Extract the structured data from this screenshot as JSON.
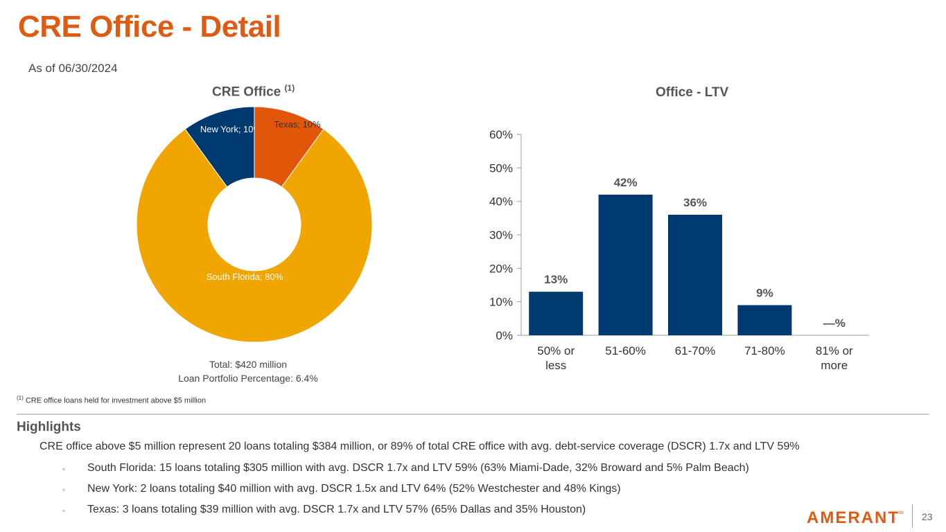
{
  "page": {
    "title": "CRE Office - Detail",
    "as_of": "As of 06/30/2024",
    "page_number": "23",
    "logo_text": "AMERANT",
    "logo_mark": "SM"
  },
  "colors": {
    "accent": "#e05a12",
    "navy": "#003a70",
    "gold": "#f0a500",
    "orange": "#e2560a"
  },
  "pie": {
    "title": "CRE Office",
    "title_sup": "(1)",
    "total_line": "Total: $420 million",
    "portfolio_line": "Loan Portfolio Percentage: 6.4%"
  },
  "bar": {
    "title": "Office - LTV"
  },
  "footnote": {
    "marker": "(1)",
    "text": " CRE office loans held for investment above $5 million"
  },
  "highlights": {
    "title": "Highlights",
    "main": "CRE office above $5 million represent 20  loans totaling $384 million, or 89% of total CRE office with avg. debt-service coverage (DSCR) 1.7x and LTV 59%",
    "bullet_symbol": "◦",
    "bullets": [
      "South Florida: 15 loans totaling $305 million  with avg. DSCR 1.7x and LTV 59% (63% Miami-Dade, 32% Broward and 5% Palm Beach)",
      "New York: 2 loans totaling $40 million with avg. DSCR 1.5x and LTV 64% (52% Westchester and 48% Kings)",
      "Texas: 3 loans totaling $39 million with avg. DSCR 1.7x and LTV 57% (65% Dallas and 35% Houston)"
    ]
  },
  "chart_data": [
    {
      "type": "pie",
      "donut": true,
      "title": "CRE Office (1)",
      "slices": [
        {
          "label": "New York; 10%",
          "name": "New York",
          "value": 10,
          "color": "#003a70"
        },
        {
          "label": "Texas; 10%",
          "name": "Texas",
          "value": 10,
          "color": "#e2560a"
        },
        {
          "label": "South Florida; 80%",
          "name": "South Florida",
          "value": 80,
          "color": "#f0a500"
        }
      ]
    },
    {
      "type": "bar",
      "title": "Office - LTV",
      "categories": [
        [
          "50% or",
          "less"
        ],
        [
          "51-60%"
        ],
        [
          "61-70%"
        ],
        [
          "71-80%"
        ],
        [
          "81% or",
          "more"
        ]
      ],
      "values": [
        13,
        42,
        36,
        9,
        0
      ],
      "data_labels": [
        "13%",
        "42%",
        "36%",
        "9%",
        "—%"
      ],
      "ylim": [
        0,
        60
      ],
      "yticks": [
        "0%",
        "10%",
        "20%",
        "30%",
        "40%",
        "50%",
        "60%"
      ],
      "color": "#003a70",
      "grid": false,
      "legend": "none"
    }
  ]
}
